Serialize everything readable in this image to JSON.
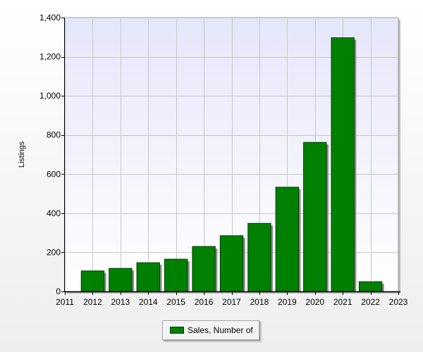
{
  "chart_data": {
    "type": "bar",
    "title": "",
    "xlabel": "",
    "ylabel": "Listings",
    "ylim": [
      0,
      1400
    ],
    "y_ticks": [
      "0",
      "200",
      "400",
      "600",
      "800",
      "1,000",
      "1,200",
      "1,400"
    ],
    "x_ticks": [
      "2011",
      "2012",
      "2013",
      "2014",
      "2015",
      "2016",
      "2017",
      "2018",
      "2019",
      "2020",
      "2021",
      "2022",
      "2023"
    ],
    "categories": [
      "2012",
      "2013",
      "2014",
      "2015",
      "2016",
      "2017",
      "2018",
      "2019",
      "2020",
      "2021",
      "2022"
    ],
    "series": [
      {
        "name": "Sales, Number of",
        "color": "#008000",
        "values": [
          105,
          118,
          147,
          165,
          230,
          285,
          348,
          533,
          762,
          1297,
          50
        ]
      }
    ],
    "grid": true,
    "legend_position": "bottom-center"
  }
}
